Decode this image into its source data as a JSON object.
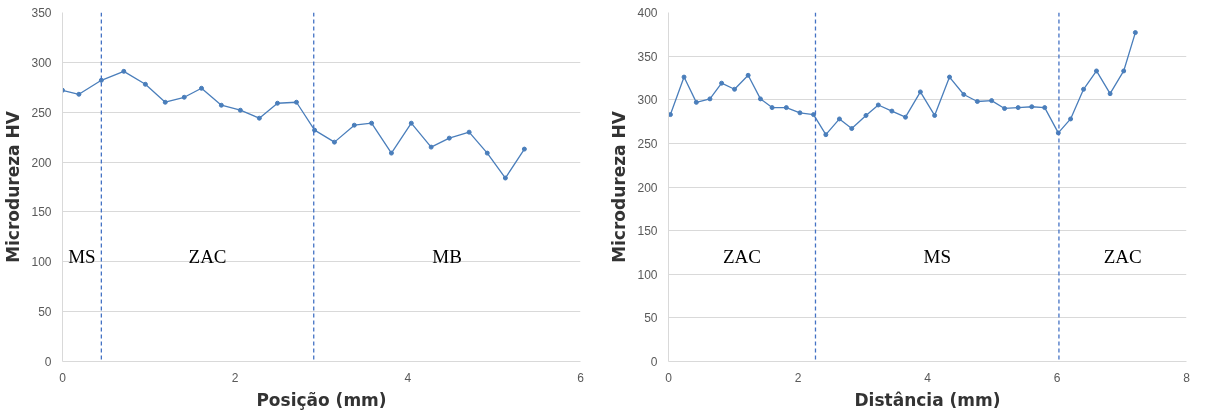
{
  "chart_data": [
    {
      "type": "line",
      "xlabel": "Posição (mm)",
      "ylabel": "Microdureza HV",
      "xlim": [
        0,
        6
      ],
      "ylim": [
        0,
        350
      ],
      "xticks": [
        0,
        2,
        4,
        6
      ],
      "yticks": [
        0,
        50,
        100,
        150,
        200,
        250,
        300,
        350
      ],
      "grid": "y",
      "marker": "circle",
      "line_style": "solid",
      "series": [
        {
          "color": "#4a7ebb",
          "x": [
            0,
            0.19,
            0.45,
            0.71,
            0.96,
            1.19,
            1.41,
            1.61,
            1.84,
            2.06,
            2.28,
            2.49,
            2.71,
            2.92,
            3.15,
            3.38,
            3.58,
            3.81,
            4.04,
            4.27,
            4.48,
            4.71,
            4.92,
            5.13,
            5.35
          ],
          "values": [
            272,
            268,
            282,
            291,
            278,
            260,
            265,
            274,
            257,
            252,
            244,
            259,
            260,
            232,
            220,
            237,
            239,
            209,
            239,
            215,
            224,
            230,
            209,
            184,
            213
          ]
        }
      ],
      "ref_lines": [
        {
          "axis": "x",
          "value": 0.45,
          "color": "#4472c4",
          "line_style": "dashed"
        },
        {
          "axis": "x",
          "value": 2.91,
          "color": "#4472c4",
          "line_style": "dashed"
        }
      ],
      "annotations": [
        "MS",
        "ZAC",
        "MB"
      ]
    },
    {
      "type": "line",
      "xlabel": "Distância (mm)",
      "ylabel": "Microdureza HV",
      "xlim": [
        0,
        8
      ],
      "ylim": [
        0,
        400
      ],
      "xticks": [
        0,
        2,
        4,
        6,
        8
      ],
      "yticks": [
        0,
        50,
        100,
        150,
        200,
        250,
        300,
        350,
        400
      ],
      "grid": "y",
      "marker": "circle",
      "line_style": "solid",
      "series": [
        {
          "color": "#4a7ebb",
          "x": [
            0.03,
            0.24,
            0.43,
            0.64,
            0.82,
            1.02,
            1.23,
            1.42,
            1.6,
            1.82,
            2.03,
            2.24,
            2.43,
            2.64,
            2.83,
            3.05,
            3.24,
            3.45,
            3.66,
            3.89,
            4.11,
            4.34,
            4.56,
            4.77,
            4.99,
            5.19,
            5.4,
            5.61,
            5.81,
            6.02,
            6.21,
            6.41,
            6.61,
            6.82,
            7.03,
            7.21
          ],
          "values": [
            283,
            326,
            297,
            301,
            319,
            312,
            328,
            301,
            291,
            291,
            285,
            283,
            260,
            278,
            267,
            282,
            294,
            287,
            280,
            309,
            282,
            326,
            306,
            298,
            299,
            290,
            291,
            292,
            291,
            262,
            278,
            312,
            333,
            307,
            333,
            377
          ]
        }
      ],
      "ref_lines": [
        {
          "axis": "x",
          "value": 2.27,
          "color": "#4472c4",
          "line_style": "dashed"
        },
        {
          "axis": "x",
          "value": 6.03,
          "color": "#4472c4",
          "line_style": "dashed"
        }
      ],
      "annotations": [
        "ZAC",
        "MS",
        "ZAC"
      ]
    }
  ]
}
